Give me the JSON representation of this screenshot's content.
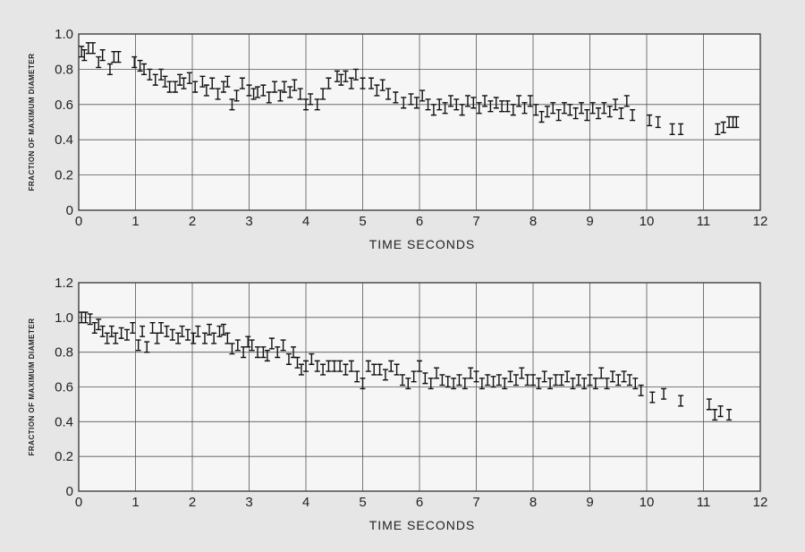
{
  "chart_data": [
    {
      "type": "scatter",
      "style": "error-bars",
      "title": "",
      "xlabel": "TIME SECONDS",
      "ylabel": "FRACTION OF MAXIMUM DIAMETER",
      "xlim": [
        0,
        12
      ],
      "ylim": [
        0,
        1.0
      ],
      "xticks": [
        "0",
        "1",
        "2",
        "3",
        "4",
        "5",
        "6",
        "7",
        "8",
        "9",
        "10",
        "11",
        "12"
      ],
      "yticks": [
        "0",
        "0.2",
        "0.4",
        "0.6",
        "0.8",
        "1.0"
      ],
      "grid": true,
      "halfwidth": 0.03,
      "series": [
        {
          "x": [
            0.05,
            0.1,
            0.17,
            0.25,
            0.35,
            0.42,
            0.55,
            0.62,
            0.7,
            0.98,
            1.08,
            1.15,
            1.25,
            1.35,
            1.45,
            1.52,
            1.6,
            1.7,
            1.78,
            1.85,
            1.95,
            2.05,
            2.18,
            2.25,
            2.35,
            2.45,
            2.55,
            2.62,
            2.7,
            2.78,
            2.88,
            3.0,
            3.08,
            3.15,
            3.25,
            3.35,
            3.45,
            3.55,
            3.62,
            3.72,
            3.8,
            3.9,
            4.0,
            4.08,
            4.2,
            4.3,
            4.4,
            4.55,
            4.62,
            4.7,
            4.8,
            4.88,
            5.0,
            5.15,
            5.25,
            5.35,
            5.45,
            5.58,
            5.72,
            5.85,
            5.95,
            6.05,
            6.15,
            6.25,
            6.35,
            6.45,
            6.55,
            6.65,
            6.75,
            6.85,
            6.95,
            7.05,
            7.15,
            7.25,
            7.35,
            7.45,
            7.55,
            7.65,
            7.75,
            7.85,
            7.95,
            8.05,
            8.15,
            8.25,
            8.35,
            8.45,
            8.55,
            8.65,
            8.75,
            8.85,
            8.95,
            9.05,
            9.15,
            9.25,
            9.35,
            9.45,
            9.55,
            9.65,
            9.75,
            10.05,
            10.2,
            10.45,
            10.6,
            11.25,
            11.35,
            11.45,
            11.52,
            11.58
          ],
          "y": [
            0.9,
            0.88,
            0.92,
            0.92,
            0.84,
            0.88,
            0.8,
            0.87,
            0.87,
            0.84,
            0.82,
            0.8,
            0.77,
            0.74,
            0.77,
            0.73,
            0.7,
            0.7,
            0.74,
            0.72,
            0.75,
            0.7,
            0.73,
            0.68,
            0.72,
            0.66,
            0.7,
            0.73,
            0.6,
            0.65,
            0.72,
            0.68,
            0.66,
            0.67,
            0.68,
            0.64,
            0.7,
            0.65,
            0.7,
            0.67,
            0.71,
            0.66,
            0.6,
            0.63,
            0.6,
            0.66,
            0.72,
            0.76,
            0.74,
            0.76,
            0.72,
            0.77,
            0.72,
            0.72,
            0.68,
            0.71,
            0.66,
            0.64,
            0.61,
            0.63,
            0.61,
            0.65,
            0.6,
            0.57,
            0.6,
            0.58,
            0.62,
            0.6,
            0.57,
            0.62,
            0.61,
            0.58,
            0.62,
            0.59,
            0.61,
            0.59,
            0.59,
            0.57,
            0.62,
            0.58,
            0.62,
            0.57,
            0.53,
            0.56,
            0.58,
            0.54,
            0.58,
            0.57,
            0.55,
            0.58,
            0.54,
            0.58,
            0.55,
            0.58,
            0.56,
            0.6,
            0.55,
            0.62,
            0.54,
            0.51,
            0.5,
            0.46,
            0.46,
            0.46,
            0.47,
            0.5,
            0.5,
            0.5
          ]
        }
      ]
    },
    {
      "type": "scatter",
      "style": "error-bars",
      "title": "",
      "xlabel": "TIME SECONDS",
      "ylabel": "FRACTION OF MAXIMUM DIAMETER",
      "xlim": [
        0,
        12
      ],
      "ylim": [
        0,
        1.2
      ],
      "xticks": [
        "0",
        "1",
        "2",
        "3",
        "4",
        "5",
        "6",
        "7",
        "8",
        "9",
        "10",
        "11",
        "12"
      ],
      "yticks": [
        "0",
        "0.2",
        "0.4",
        "0.6",
        "0.8",
        "1.0",
        "1.2"
      ],
      "grid": true,
      "halfwidth": 0.03,
      "series": [
        {
          "x": [
            0.05,
            0.12,
            0.2,
            0.28,
            0.35,
            0.42,
            0.5,
            0.58,
            0.65,
            0.75,
            0.85,
            0.95,
            1.05,
            1.12,
            1.2,
            1.3,
            1.38,
            1.45,
            1.55,
            1.65,
            1.75,
            1.82,
            1.92,
            2.02,
            2.1,
            2.22,
            2.3,
            2.38,
            2.48,
            2.55,
            2.62,
            2.7,
            2.8,
            2.9,
            2.98,
            3.05,
            3.15,
            3.25,
            3.32,
            3.4,
            3.5,
            3.6,
            3.7,
            3.78,
            3.85,
            3.92,
            4.0,
            4.1,
            4.2,
            4.3,
            4.4,
            4.5,
            4.6,
            4.7,
            4.8,
            4.9,
            5.0,
            5.1,
            5.2,
            5.3,
            5.4,
            5.5,
            5.6,
            5.7,
            5.8,
            5.9,
            6.0,
            6.1,
            6.2,
            6.3,
            6.4,
            6.5,
            6.6,
            6.7,
            6.8,
            6.9,
            7.0,
            7.1,
            7.2,
            7.3,
            7.4,
            7.5,
            7.6,
            7.7,
            7.8,
            7.9,
            8.0,
            8.1,
            8.2,
            8.3,
            8.4,
            8.5,
            8.6,
            8.7,
            8.8,
            8.9,
            9.0,
            9.1,
            9.2,
            9.3,
            9.4,
            9.5,
            9.6,
            9.7,
            9.8,
            9.9,
            10.1,
            10.3,
            10.6,
            11.1,
            11.2,
            11.3,
            11.45
          ],
          "y": [
            1.0,
            1.0,
            0.99,
            0.94,
            0.96,
            0.92,
            0.88,
            0.92,
            0.88,
            0.91,
            0.9,
            0.94,
            0.84,
            0.92,
            0.83,
            0.94,
            0.88,
            0.94,
            0.92,
            0.9,
            0.88,
            0.92,
            0.9,
            0.88,
            0.92,
            0.88,
            0.93,
            0.88,
            0.92,
            0.93,
            0.88,
            0.82,
            0.84,
            0.8,
            0.86,
            0.84,
            0.8,
            0.8,
            0.78,
            0.85,
            0.8,
            0.84,
            0.76,
            0.8,
            0.74,
            0.7,
            0.72,
            0.76,
            0.72,
            0.7,
            0.72,
            0.72,
            0.72,
            0.7,
            0.72,
            0.66,
            0.62,
            0.72,
            0.7,
            0.7,
            0.67,
            0.72,
            0.7,
            0.64,
            0.62,
            0.66,
            0.72,
            0.65,
            0.62,
            0.68,
            0.64,
            0.63,
            0.62,
            0.64,
            0.62,
            0.68,
            0.66,
            0.62,
            0.64,
            0.63,
            0.64,
            0.62,
            0.66,
            0.64,
            0.68,
            0.64,
            0.64,
            0.62,
            0.66,
            0.62,
            0.64,
            0.64,
            0.66,
            0.62,
            0.64,
            0.62,
            0.64,
            0.62,
            0.68,
            0.62,
            0.66,
            0.64,
            0.66,
            0.64,
            0.62,
            0.58,
            0.54,
            0.56,
            0.52,
            0.5,
            0.44,
            0.46,
            0.44
          ]
        }
      ]
    }
  ]
}
